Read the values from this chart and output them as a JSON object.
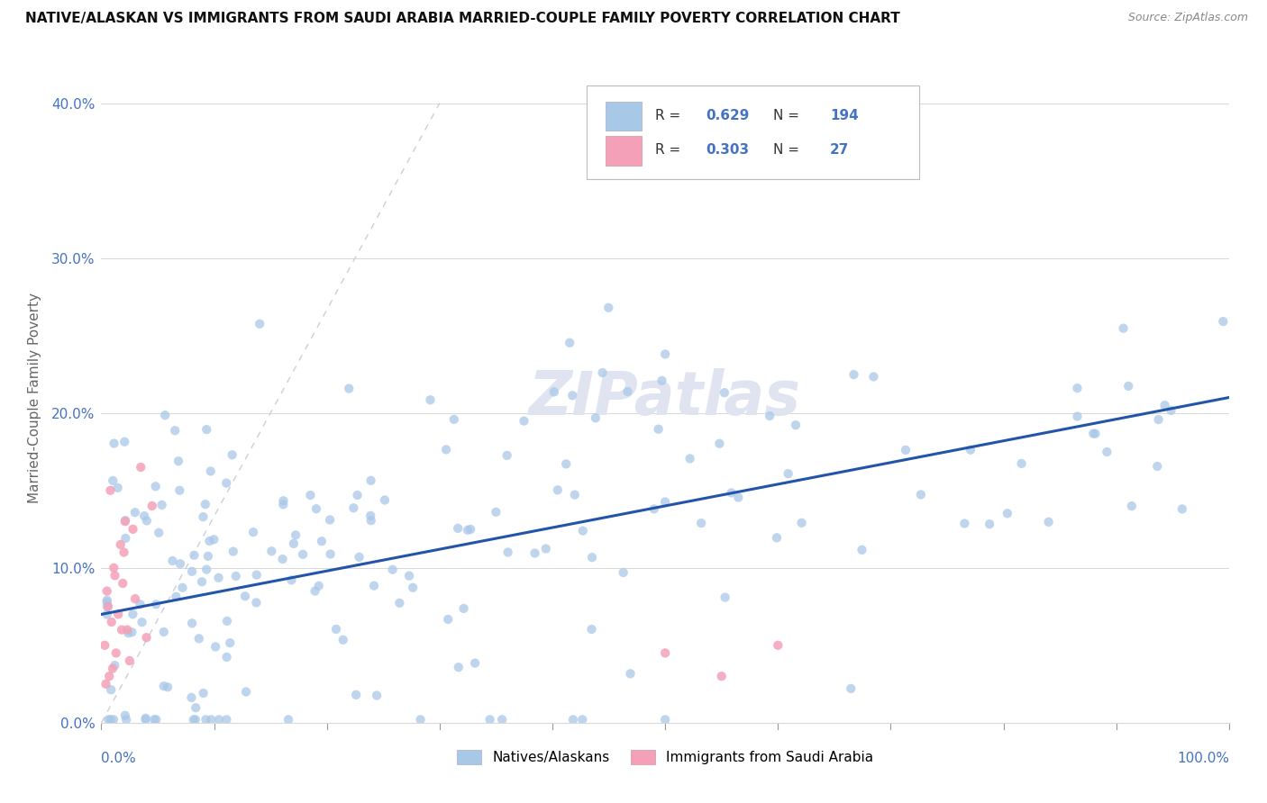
{
  "title": "NATIVE/ALASKAN VS IMMIGRANTS FROM SAUDI ARABIA MARRIED-COUPLE FAMILY POVERTY CORRELATION CHART",
  "source": "Source: ZipAtlas.com",
  "ylabel": "Married-Couple Family Poverty",
  "natives_R": 0.629,
  "natives_N": 194,
  "immigrants_R": 0.303,
  "immigrants_N": 27,
  "native_color": "#a8c8e8",
  "immigrant_color": "#f4a0b8",
  "native_line_color": "#2255aa",
  "diagonal_color": "#c8c8d8",
  "background_color": "#ffffff",
  "legend_R_color": "#4472c4",
  "watermark_text": "ZIPatlas",
  "watermark_color": "#e0e4f0",
  "xlim": [
    0,
    100
  ],
  "ylim": [
    0,
    42
  ],
  "yticks": [
    0,
    10,
    20,
    30,
    40
  ],
  "grid_color": "#d8d8d8",
  "title_fontsize": 11,
  "source_fontsize": 9,
  "tick_label_color": "#4472c4",
  "ylabel_color": "#666666"
}
